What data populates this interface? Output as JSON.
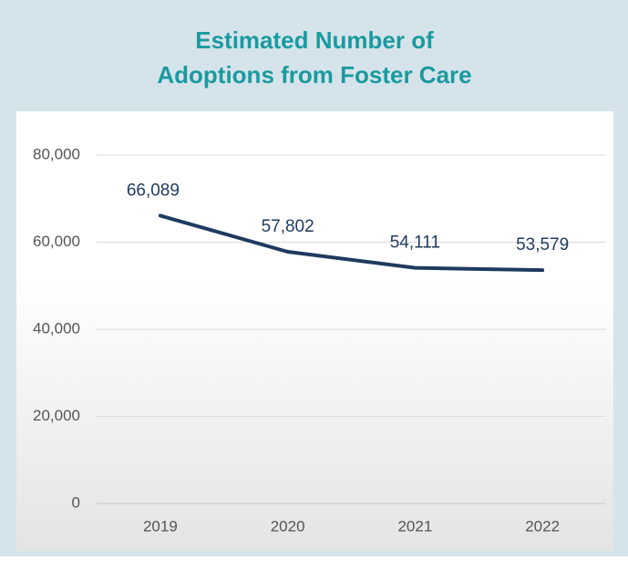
{
  "chart_data": {
    "type": "line",
    "title": [
      "Estimated Number of",
      "Adoptions from Foster Care"
    ],
    "categories": [
      "2019",
      "2020",
      "2021",
      "2022"
    ],
    "series": [
      {
        "color": "#1f3a5f",
        "values": [
          66089,
          57802,
          54111,
          53579
        ],
        "value_labels": [
          "66,089",
          "57,802",
          "54,111",
          "53,579"
        ]
      }
    ],
    "ylim": [
      0,
      80000
    ],
    "yticks": [
      0,
      {
        "value": 20000,
        "label": "20,000"
      },
      {
        "value": 40000,
        "label": "40,000"
      },
      {
        "value": 60000,
        "label": "60,000"
      },
      {
        "value": 80000,
        "label": "80,000"
      }
    ],
    "grid": true
  }
}
